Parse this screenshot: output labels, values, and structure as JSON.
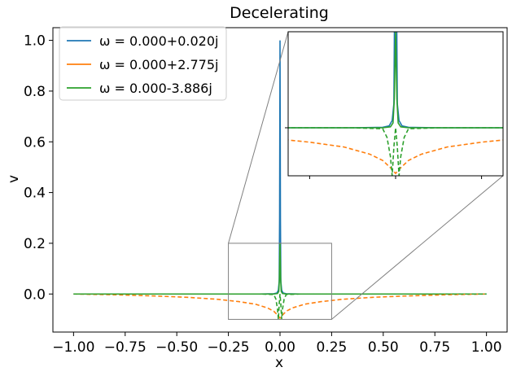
{
  "chart_data": {
    "type": "line",
    "title": "Decelerating",
    "xlabel": "x",
    "ylabel": "v",
    "xlim": [
      -1.1,
      1.1
    ],
    "ylim": [
      -0.15,
      1.05
    ],
    "xticks": [
      -1.0,
      -0.75,
      -0.5,
      -0.25,
      0.0,
      0.25,
      0.5,
      0.75,
      1.0
    ],
    "xtick_labels": [
      "−1.00",
      "−0.75",
      "−0.50",
      "−0.25",
      "0.00",
      "0.25",
      "0.50",
      "0.75",
      "1.00"
    ],
    "yticks": [
      0.0,
      0.2,
      0.4,
      0.6,
      0.8,
      1.0
    ],
    "ytick_labels": [
      "0.0",
      "0.2",
      "0.4",
      "0.6",
      "0.8",
      "1.0"
    ],
    "grid": false,
    "legend_placement": "top-left",
    "series": [
      {
        "name": "ω = 0.000+0.020j",
        "color": "#1f77b4",
        "style": "solid",
        "x": [
          -1.0,
          -0.5,
          -0.1,
          -0.03,
          -0.015,
          -0.008,
          -0.004,
          -0.002,
          0.0,
          0.002,
          0.004,
          0.008,
          0.015,
          0.03,
          0.1,
          0.5,
          1.0
        ],
        "y": [
          0.0,
          0.0,
          0.0,
          0.001,
          0.004,
          0.015,
          0.05,
          0.3,
          1.0,
          0.3,
          0.05,
          0.015,
          0.004,
          0.001,
          0.0,
          0.0,
          0.0
        ]
      },
      {
        "name": "ω = 0.000+2.775j",
        "color": "#ff7f0e",
        "style": "solid",
        "x": [],
        "y": []
      },
      {
        "name": "ω = 0.000-3.886j",
        "color": "#2ca02c",
        "style": "solid",
        "x": [
          -1.0,
          -0.5,
          -0.1,
          -0.03,
          -0.012,
          -0.006,
          -0.003,
          0.0,
          0.003,
          0.006,
          0.012,
          0.03,
          0.1,
          0.5,
          1.0
        ],
        "y": [
          0.0,
          0.0,
          0.0,
          0.0,
          0.002,
          0.01,
          0.06,
          0.2,
          0.06,
          0.01,
          0.002,
          0.0,
          0.0,
          0.0,
          0.0
        ]
      },
      {
        "color": "#ff7f0e",
        "style": "dashed",
        "x": [
          -1.0,
          -0.8,
          -0.6,
          -0.45,
          -0.3,
          -0.2,
          -0.12,
          -0.06,
          -0.03,
          -0.01,
          0.0,
          0.01,
          0.03,
          0.06,
          0.12,
          0.2,
          0.3,
          0.45,
          0.6,
          0.8,
          1.0
        ],
        "y": [
          0.0,
          -0.003,
          -0.008,
          -0.013,
          -0.021,
          -0.03,
          -0.04,
          -0.055,
          -0.068,
          -0.085,
          -0.095,
          -0.085,
          -0.068,
          -0.055,
          -0.04,
          -0.03,
          -0.021,
          -0.013,
          -0.008,
          -0.003,
          0.0
        ]
      },
      {
        "color": "#2ca02c",
        "style": "dashed",
        "x": [
          -1.0,
          -0.1,
          -0.03,
          -0.02,
          -0.012,
          -0.008,
          -0.004,
          0.0,
          0.004,
          0.008,
          0.012,
          0.02,
          0.03,
          0.1,
          1.0
        ],
        "y": [
          0.0,
          0.0,
          -0.002,
          -0.02,
          -0.06,
          -0.1,
          -0.04,
          0.0,
          -0.04,
          -0.1,
          -0.06,
          -0.02,
          -0.002,
          0.0,
          0.0
        ]
      }
    ],
    "inset": {
      "zoom_region": {
        "xlim": [
          -0.25,
          0.25
        ],
        "ylim": [
          -0.1,
          0.2
        ]
      }
    }
  }
}
